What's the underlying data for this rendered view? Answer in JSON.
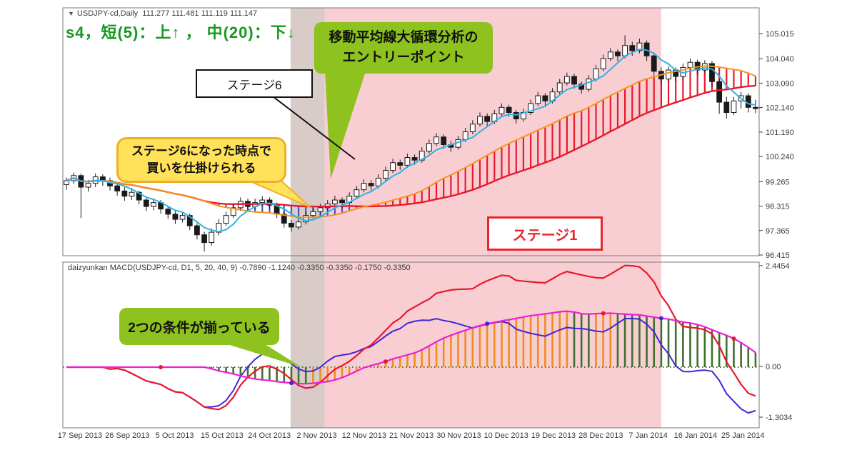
{
  "window": {
    "dropdown_marker": "▼",
    "title": "USDJPY-cd,Daily",
    "ohlc": "111.277 111.481 111.119 111.147"
  },
  "stage_status": "s4，短(5)：上↑ ， 中(20)：下↓",
  "indicator": {
    "header": "daizyunkan MACD(USDJPY-cd, D1, 5, 20, 40, 9) -0.7890 -1.1240 -0.3350 -0.3350 -0.1750 -0.3350"
  },
  "annotations": {
    "entry_point": {
      "line1": "移動平均線大循環分析の",
      "line2": "エントリーポイント"
    },
    "stage6": {
      "label": "ステージ6"
    },
    "buy_signal": {
      "line1": "ステージ6になった時点で",
      "line2": "買いを仕掛けられる"
    },
    "stage1": {
      "label": "ステージ1"
    },
    "two_conditions": {
      "label": "2つの条件が揃っている"
    }
  },
  "chart_data": {
    "type": "candlestick+macd",
    "symbol": "USDJPY-cd",
    "timeframe": "Daily",
    "price_ticks": [
      "105.015",
      "104.040",
      "103.090",
      "102.140",
      "101.190",
      "100.240",
      "99.265",
      "98.315",
      "97.365",
      "96.415"
    ],
    "macd_ticks": [
      "2.4454",
      "0.00",
      "-1.3034"
    ],
    "dates": [
      "17 Sep 2013",
      "26 Sep 2013",
      "5 Oct 2013",
      "15 Oct 2013",
      "24 Oct 2013",
      "2 Nov 2013",
      "12 Nov 2013",
      "21 Nov 2013",
      "30 Nov 2013",
      "10 Dec 2013",
      "19 Dec 2013",
      "28 Dec 2013",
      "7 Jan 2014",
      "16 Jan 2014",
      "25 Jan 2014"
    ],
    "ma_periods": [
      5,
      20,
      40
    ],
    "macd_params": [
      5,
      20,
      40,
      9
    ],
    "regions": [
      {
        "from_index": 31.4,
        "to_index": 36.1,
        "color": "#d8cbc8",
        "name": "stage6-shading"
      },
      {
        "from_index": 36.1,
        "to_index": 82.5,
        "color": "#f8ced3",
        "name": "stage1-shading"
      }
    ],
    "candles": [
      [
        99.15,
        99.42,
        98.95,
        99.3
      ],
      [
        99.3,
        99.62,
        99.18,
        99.5
      ],
      [
        99.5,
        99.58,
        97.85,
        99.05
      ],
      [
        99.05,
        99.33,
        98.88,
        99.2
      ],
      [
        99.2,
        99.58,
        99.05,
        99.45
      ],
      [
        99.45,
        99.55,
        99.1,
        99.3
      ],
      [
        99.3,
        99.42,
        98.92,
        99.1
      ],
      [
        99.1,
        99.25,
        98.72,
        98.9
      ],
      [
        98.9,
        99.05,
        98.52,
        98.7
      ],
      [
        98.7,
        99.02,
        98.55,
        98.85
      ],
      [
        98.85,
        98.92,
        98.38,
        98.55
      ],
      [
        98.55,
        98.65,
        98.12,
        98.3
      ],
      [
        98.3,
        98.62,
        98.15,
        98.45
      ],
      [
        98.45,
        98.55,
        98.02,
        98.2
      ],
      [
        98.2,
        98.32,
        97.82,
        98.0
      ],
      [
        98.0,
        98.12,
        97.62,
        97.8
      ],
      [
        97.8,
        98.1,
        97.68,
        97.95
      ],
      [
        97.95,
        98.02,
        97.38,
        97.55
      ],
      [
        97.55,
        97.65,
        97.02,
        97.2
      ],
      [
        97.2,
        97.32,
        96.55,
        96.9
      ],
      [
        96.9,
        97.45,
        96.78,
        97.3
      ],
      [
        97.3,
        97.8,
        97.18,
        97.65
      ],
      [
        97.65,
        98.1,
        97.55,
        97.95
      ],
      [
        97.95,
        98.4,
        97.85,
        98.25
      ],
      [
        98.25,
        98.65,
        98.12,
        98.5
      ],
      [
        98.5,
        98.6,
        98.15,
        98.3
      ],
      [
        98.3,
        98.6,
        98.18,
        98.45
      ],
      [
        98.45,
        98.7,
        98.3,
        98.55
      ],
      [
        98.55,
        98.65,
        98.2,
        98.35
      ],
      [
        98.35,
        98.45,
        97.85,
        98.0
      ],
      [
        98.0,
        98.1,
        97.48,
        97.65
      ],
      [
        97.65,
        97.78,
        97.32,
        97.5
      ],
      [
        97.5,
        97.85,
        97.4,
        97.7
      ],
      [
        97.7,
        98.1,
        97.6,
        97.95
      ],
      [
        97.95,
        98.25,
        97.82,
        98.1
      ],
      [
        98.1,
        98.4,
        98.0,
        98.25
      ],
      [
        98.25,
        98.55,
        98.12,
        98.4
      ],
      [
        98.4,
        98.72,
        98.28,
        98.55
      ],
      [
        98.55,
        98.65,
        98.25,
        98.45
      ],
      [
        98.45,
        98.85,
        98.35,
        98.7
      ],
      [
        98.7,
        99.1,
        98.6,
        98.95
      ],
      [
        98.95,
        99.35,
        98.85,
        99.2
      ],
      [
        99.2,
        99.32,
        98.92,
        99.1
      ],
      [
        99.1,
        99.55,
        99.0,
        99.4
      ],
      [
        99.4,
        99.85,
        99.3,
        99.7
      ],
      [
        99.7,
        100.15,
        99.6,
        100.0
      ],
      [
        100.0,
        100.12,
        99.72,
        99.9
      ],
      [
        99.9,
        100.35,
        99.8,
        100.2
      ],
      [
        100.2,
        100.32,
        99.92,
        100.1
      ],
      [
        100.1,
        100.6,
        100.0,
        100.45
      ],
      [
        100.45,
        100.9,
        100.35,
        100.75
      ],
      [
        100.75,
        101.15,
        100.65,
        101.0
      ],
      [
        101.0,
        101.1,
        100.55,
        100.7
      ],
      [
        100.7,
        100.85,
        100.42,
        100.6
      ],
      [
        100.6,
        101.05,
        100.5,
        100.9
      ],
      [
        100.9,
        101.35,
        100.8,
        101.2
      ],
      [
        101.2,
        101.65,
        101.1,
        101.5
      ],
      [
        101.5,
        101.95,
        101.4,
        101.8
      ],
      [
        101.8,
        101.92,
        101.42,
        101.6
      ],
      [
        101.6,
        102.05,
        101.5,
        101.9
      ],
      [
        101.9,
        102.3,
        101.8,
        102.15
      ],
      [
        102.15,
        102.25,
        101.78,
        101.95
      ],
      [
        101.95,
        102.05,
        101.52,
        101.7
      ],
      [
        101.7,
        102.1,
        101.6,
        101.95
      ],
      [
        101.95,
        102.45,
        101.85,
        102.3
      ],
      [
        102.3,
        102.75,
        102.2,
        102.6
      ],
      [
        102.6,
        102.7,
        102.22,
        102.4
      ],
      [
        102.4,
        102.9,
        102.3,
        102.75
      ],
      [
        102.75,
        103.25,
        102.65,
        103.1
      ],
      [
        103.1,
        103.5,
        103.0,
        103.35
      ],
      [
        103.35,
        103.45,
        102.88,
        103.05
      ],
      [
        103.05,
        103.15,
        102.68,
        102.85
      ],
      [
        102.85,
        103.4,
        102.75,
        103.25
      ],
      [
        103.25,
        103.8,
        103.15,
        103.65
      ],
      [
        103.65,
        104.2,
        103.55,
        104.05
      ],
      [
        104.05,
        104.45,
        103.95,
        104.3
      ],
      [
        104.3,
        104.4,
        103.95,
        104.15
      ],
      [
        104.15,
        104.95,
        104.05,
        104.55
      ],
      [
        104.55,
        104.7,
        104.15,
        104.35
      ],
      [
        104.35,
        104.82,
        104.25,
        104.65
      ],
      [
        104.65,
        104.75,
        103.95,
        104.15
      ],
      [
        104.15,
        104.25,
        103.35,
        103.55
      ],
      [
        103.55,
        103.7,
        103.05,
        103.25
      ],
      [
        103.25,
        103.75,
        103.15,
        103.6
      ],
      [
        103.6,
        103.7,
        103.15,
        103.35
      ],
      [
        103.35,
        103.85,
        103.25,
        103.7
      ],
      [
        103.7,
        104.05,
        103.6,
        103.9
      ],
      [
        103.9,
        104.0,
        103.42,
        103.6
      ],
      [
        103.6,
        103.98,
        103.5,
        103.85
      ],
      [
        103.85,
        103.95,
        102.95,
        103.15
      ],
      [
        103.15,
        103.25,
        101.9,
        102.35
      ],
      [
        102.35,
        102.55,
        101.72,
        101.95
      ],
      [
        101.95,
        102.55,
        101.85,
        102.4
      ],
      [
        102.4,
        102.75,
        102.1,
        102.6
      ],
      [
        102.6,
        102.7,
        101.95,
        102.15
      ],
      [
        102.15,
        102.45,
        101.92,
        102.1
      ]
    ],
    "markers": [
      {
        "index": 13,
        "color": "#e8192c"
      },
      {
        "index": 31,
        "color": "#4326d9"
      },
      {
        "index": 44,
        "color": "#e8192c"
      },
      {
        "index": 58,
        "color": "#4326d9"
      },
      {
        "index": 74,
        "color": "#e8192c"
      },
      {
        "index": 82,
        "color": "#4326d9"
      },
      {
        "index": 92,
        "color": "#e8192c"
      }
    ],
    "colors": {
      "ma_fast": "#2fb3e6",
      "ma_mid": "#f7941d",
      "ma_slow": "#e8192c",
      "hatch_up": "#e8192c",
      "hatch_down": "#4653cf",
      "macd_line1": "#e8192c",
      "macd_line2": "#4326d9",
      "macd_signal": "#ec1fd7",
      "hist_up": "#ee8d1f",
      "hist_down": "#3f7030",
      "candle_outline": "#1a1a1a",
      "zero_line": "#3f7d20",
      "frame": "#7a7a7a",
      "label": "#3a3a3a",
      "callout_green": "#8dc21f",
      "callout_yellow": "#ffe15a",
      "stage1_red": "#e8262d"
    }
  }
}
